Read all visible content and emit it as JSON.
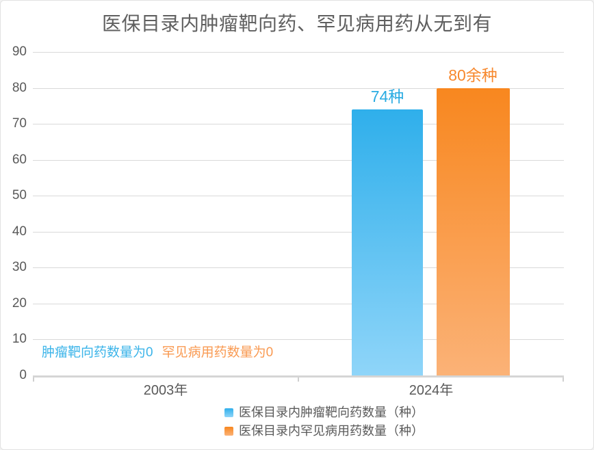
{
  "title": "医保目录内肿瘤靶向药、罕见病用药从无到有",
  "chart_data": {
    "type": "bar",
    "categories": [
      "2003年",
      "2024年"
    ],
    "series": [
      {
        "name": "医保目录内肿瘤靶向药数量（种）",
        "values": [
          0,
          74
        ],
        "color_top": "#2fafeb",
        "color_bottom": "#8fd5f9",
        "label_color": "#29abe2"
      },
      {
        "name": "医保目录内罕见病用药数量（种）",
        "values": [
          0,
          80
        ],
        "color_top": "#f8871f",
        "color_bottom": "#fbb277",
        "label_color": "#f7882d"
      }
    ],
    "bar_labels": [
      "74种",
      "80余种"
    ],
    "annotations": [
      {
        "text": "肿瘤靶向药数量为0",
        "color": "#3bb4e9"
      },
      {
        "text": "罕见病用药数量为0",
        "color": "#f99a52"
      }
    ],
    "yticks": [
      90,
      80,
      70,
      60,
      50,
      40,
      30,
      20,
      10,
      0
    ],
    "ylim": [
      0,
      90
    ],
    "xlabel": "",
    "ylabel": "",
    "grid": true,
    "legend_position": "bottom",
    "colors": {
      "title_text": "#5f5f5f",
      "axis_text": "#595959",
      "gridline": "#d9d9d9",
      "axis_line": "#d5d5d5"
    }
  }
}
